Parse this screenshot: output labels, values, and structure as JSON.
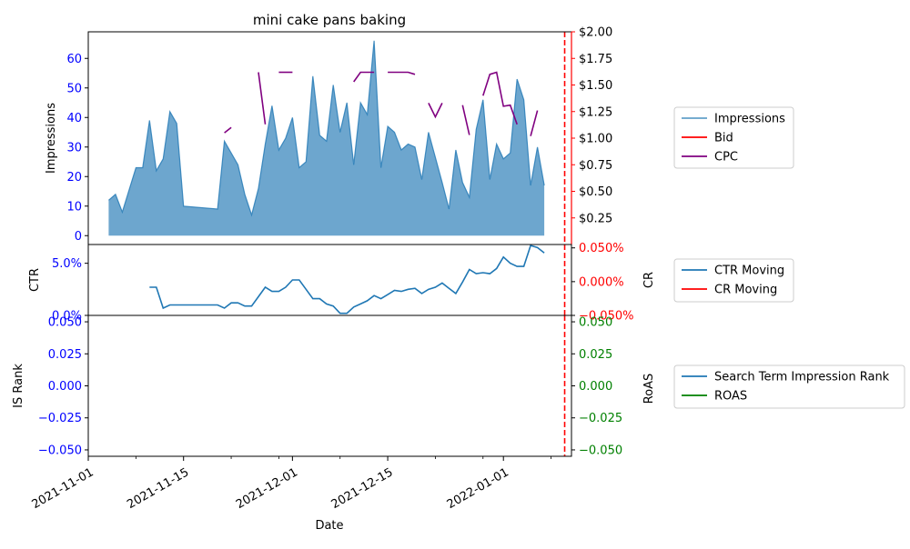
{
  "chart_data": {
    "type": "area",
    "title": "mini cake pans baking",
    "xlabel": "Date",
    "x_range": [
      "2021-11-01",
      "2022-01-11"
    ],
    "x_ticks": [
      "2021-11-01",
      "2021-11-15",
      "2021-12-01",
      "2021-12-15",
      "2022-01-01"
    ],
    "vline_date": "2022-01-10",
    "panels": [
      {
        "name": "impressions",
        "ylabel": "Impressions",
        "ylim": [
          -3,
          69
        ],
        "y_ticks": [
          "0",
          "10",
          "20",
          "30",
          "40",
          "50",
          "60"
        ],
        "y_tick_values": [
          0,
          10,
          20,
          30,
          40,
          50,
          60
        ],
        "y2label": "",
        "y2lim": [
          0,
          2.0
        ],
        "y2_ticks": [
          "$0.25",
          "$0.50",
          "$0.75",
          "$1.00",
          "$1.25",
          "$1.50",
          "$1.75",
          "$2.00"
        ],
        "y2_tick_values": [
          0.25,
          0.5,
          0.75,
          1.0,
          1.25,
          1.5,
          1.75,
          2.0
        ],
        "legend": [
          "Impressions",
          "Bid",
          "CPC"
        ],
        "series": [
          {
            "name": "Impressions",
            "color": "#1f77b4",
            "points": [
              [
                "2021-11-04",
                12
              ],
              [
                "2021-11-05",
                14
              ],
              [
                "2021-11-06",
                8
              ],
              [
                "2021-11-08",
                23
              ],
              [
                "2021-11-09",
                23
              ],
              [
                "2021-11-10",
                39
              ],
              [
                "2021-11-11",
                22
              ],
              [
                "2021-11-12",
                26
              ],
              [
                "2021-11-13",
                42
              ],
              [
                "2021-11-14",
                38
              ],
              [
                "2021-11-15",
                10
              ],
              [
                "2021-11-20",
                9
              ],
              [
                "2021-11-21",
                32
              ],
              [
                "2021-11-23",
                24
              ],
              [
                "2021-11-24",
                14
              ],
              [
                "2021-11-25",
                7
              ],
              [
                "2021-11-26",
                16
              ],
              [
                "2021-11-27",
                31
              ],
              [
                "2021-11-28",
                44
              ],
              [
                "2021-11-29",
                29
              ],
              [
                "2021-11-30",
                33
              ],
              [
                "2021-12-01",
                40
              ],
              [
                "2021-12-02",
                23
              ],
              [
                "2021-12-03",
                25
              ],
              [
                "2021-12-04",
                54
              ],
              [
                "2021-12-05",
                34
              ],
              [
                "2021-12-06",
                32
              ],
              [
                "2021-12-07",
                51
              ],
              [
                "2021-12-08",
                35
              ],
              [
                "2021-12-09",
                45
              ],
              [
                "2021-12-10",
                24
              ],
              [
                "2021-12-11",
                45
              ],
              [
                "2021-12-12",
                41
              ],
              [
                "2021-12-13",
                66
              ],
              [
                "2021-12-14",
                23
              ],
              [
                "2021-12-15",
                37
              ],
              [
                "2021-12-16",
                35
              ],
              [
                "2021-12-17",
                29
              ],
              [
                "2021-12-18",
                31
              ],
              [
                "2021-12-19",
                30
              ],
              [
                "2021-12-20",
                19
              ],
              [
                "2021-12-21",
                35
              ],
              [
                "2021-12-23",
                18
              ],
              [
                "2021-12-24",
                9
              ],
              [
                "2021-12-25",
                29
              ],
              [
                "2021-12-26",
                18
              ],
              [
                "2021-12-27",
                13
              ],
              [
                "2021-12-28",
                36
              ],
              [
                "2021-12-29",
                46
              ],
              [
                "2021-12-30",
                19
              ],
              [
                "2021-12-31",
                31
              ],
              [
                "2022-01-01",
                26
              ],
              [
                "2022-01-02",
                28
              ],
              [
                "2022-01-03",
                53
              ],
              [
                "2022-01-04",
                46
              ],
              [
                "2022-01-05",
                17
              ],
              [
                "2022-01-06",
                30
              ],
              [
                "2022-01-07",
                17
              ]
            ]
          },
          {
            "name": "CPC",
            "color": "#800080",
            "axis": "right",
            "segments": [
              [
                [
                  "2021-11-21",
                  1.05
                ],
                [
                  "2021-11-22",
                  1.1
                ]
              ],
              [
                [
                  "2021-11-26",
                  1.62
                ],
                [
                  "2021-11-27",
                  1.13
                ]
              ],
              [
                [
                  "2021-11-29",
                  1.62
                ],
                [
                  "2021-12-01",
                  1.62
                ]
              ],
              [
                [
                  "2021-12-10",
                  1.53
                ],
                [
                  "2021-12-11",
                  1.62
                ],
                [
                  "2021-12-13",
                  1.62
                ]
              ],
              [
                [
                  "2021-12-15",
                  1.62
                ],
                [
                  "2021-12-18",
                  1.62
                ],
                [
                  "2021-12-19",
                  1.6
                ]
              ],
              [
                [
                  "2021-12-21",
                  1.33
                ],
                [
                  "2021-12-22",
                  1.2
                ],
                [
                  "2021-12-23",
                  1.33
                ]
              ],
              [
                [
                  "2021-12-26",
                  1.31
                ],
                [
                  "2021-12-27",
                  1.03
                ]
              ],
              [
                [
                  "2021-12-29",
                  1.4
                ],
                [
                  "2021-12-30",
                  1.6
                ],
                [
                  "2021-12-31",
                  1.62
                ],
                [
                  "2022-01-01",
                  1.3
                ],
                [
                  "2022-01-02",
                  1.31
                ],
                [
                  "2022-01-03",
                  1.13
                ]
              ],
              [
                [
                  "2022-01-05",
                  1.02
                ],
                [
                  "2022-01-06",
                  1.26
                ]
              ]
            ]
          }
        ]
      },
      {
        "name": "ctr-cr",
        "ylabel": "CTR",
        "y2label": "CR",
        "ylim": [
          0,
          0.068
        ],
        "y_ticks": [
          "0.0%",
          "5.0%"
        ],
        "y_tick_values": [
          0,
          0.05
        ],
        "y2lim": [
          -0.05,
          0.055
        ],
        "y2_ticks": [
          "−0.050%",
          "0.000%",
          "0.050%"
        ],
        "y2_tick_values": [
          -0.05,
          0.0,
          0.05
        ],
        "legend": [
          "CTR Moving",
          "CR Moving"
        ],
        "series": [
          {
            "name": "CTR Moving",
            "color": "#1f77b4",
            "points": [
              [
                "2021-11-10",
                0.027
              ],
              [
                "2021-11-11",
                0.027
              ],
              [
                "2021-11-12",
                0.007
              ],
              [
                "2021-11-13",
                0.01
              ],
              [
                "2021-11-14",
                0.01
              ],
              [
                "2021-11-15",
                0.01
              ],
              [
                "2021-11-20",
                0.01
              ],
              [
                "2021-11-21",
                0.007
              ],
              [
                "2021-11-22",
                0.012
              ],
              [
                "2021-11-23",
                0.012
              ],
              [
                "2021-11-24",
                0.009
              ],
              [
                "2021-11-25",
                0.009
              ],
              [
                "2021-11-26",
                0.018
              ],
              [
                "2021-11-27",
                0.027
              ],
              [
                "2021-11-28",
                0.023
              ],
              [
                "2021-11-29",
                0.023
              ],
              [
                "2021-11-30",
                0.027
              ],
              [
                "2021-12-01",
                0.034
              ],
              [
                "2021-12-02",
                0.034
              ],
              [
                "2021-12-03",
                0.025
              ],
              [
                "2021-12-04",
                0.016
              ],
              [
                "2021-12-05",
                0.016
              ],
              [
                "2021-12-06",
                0.011
              ],
              [
                "2021-12-07",
                0.009
              ],
              [
                "2021-12-08",
                0.002
              ],
              [
                "2021-12-09",
                0.002
              ],
              [
                "2021-12-10",
                0.008
              ],
              [
                "2021-12-11",
                0.011
              ],
              [
                "2021-12-12",
                0.014
              ],
              [
                "2021-12-13",
                0.019
              ],
              [
                "2021-12-14",
                0.016
              ],
              [
                "2021-12-15",
                0.02
              ],
              [
                "2021-12-16",
                0.024
              ],
              [
                "2021-12-17",
                0.023
              ],
              [
                "2021-12-18",
                0.025
              ],
              [
                "2021-12-19",
                0.026
              ],
              [
                "2021-12-20",
                0.021
              ],
              [
                "2021-12-21",
                0.025
              ],
              [
                "2021-12-22",
                0.027
              ],
              [
                "2021-12-23",
                0.031
              ],
              [
                "2021-12-24",
                0.026
              ],
              [
                "2021-12-25",
                0.021
              ],
              [
                "2021-12-26",
                0.032
              ],
              [
                "2021-12-27",
                0.044
              ],
              [
                "2021-12-28",
                0.04
              ],
              [
                "2021-12-29",
                0.041
              ],
              [
                "2021-12-30",
                0.04
              ],
              [
                "2021-12-31",
                0.045
              ],
              [
                "2022-01-01",
                0.056
              ],
              [
                "2022-01-02",
                0.05
              ],
              [
                "2022-01-03",
                0.047
              ],
              [
                "2022-01-04",
                0.047
              ],
              [
                "2022-01-05",
                0.067
              ],
              [
                "2022-01-06",
                0.065
              ],
              [
                "2022-01-07",
                0.06
              ]
            ]
          }
        ]
      },
      {
        "name": "rank-roas",
        "ylabel": "IS Rank",
        "y2label": "RoAS",
        "ylim": [
          -0.055,
          0.055
        ],
        "y_ticks": [
          "−0.050",
          "−0.025",
          "0.000",
          "0.025",
          "0.050"
        ],
        "y_tick_values": [
          -0.05,
          -0.025,
          0.0,
          0.025,
          0.05
        ],
        "y2lim": [
          -0.055,
          0.055
        ],
        "y2_ticks": [
          "−0.050",
          "−0.025",
          "0.000",
          "0.025",
          "0.050"
        ],
        "y2_tick_values": [
          -0.05,
          -0.025,
          0.0,
          0.025,
          0.05
        ],
        "legend": [
          "Search Term Impression Rank",
          "ROAS"
        ]
      }
    ],
    "colors": {
      "impressions": "#1f77b4",
      "bid": "#ff0000",
      "cpc": "#800080",
      "ctr": "#1f77b4",
      "cr": "#ff0000",
      "rank": "#1f77b4",
      "roas": "#008000",
      "left_ticks": "#0000ff",
      "cr_ticks": "#ff0000",
      "roas_ticks": "#008000"
    }
  }
}
